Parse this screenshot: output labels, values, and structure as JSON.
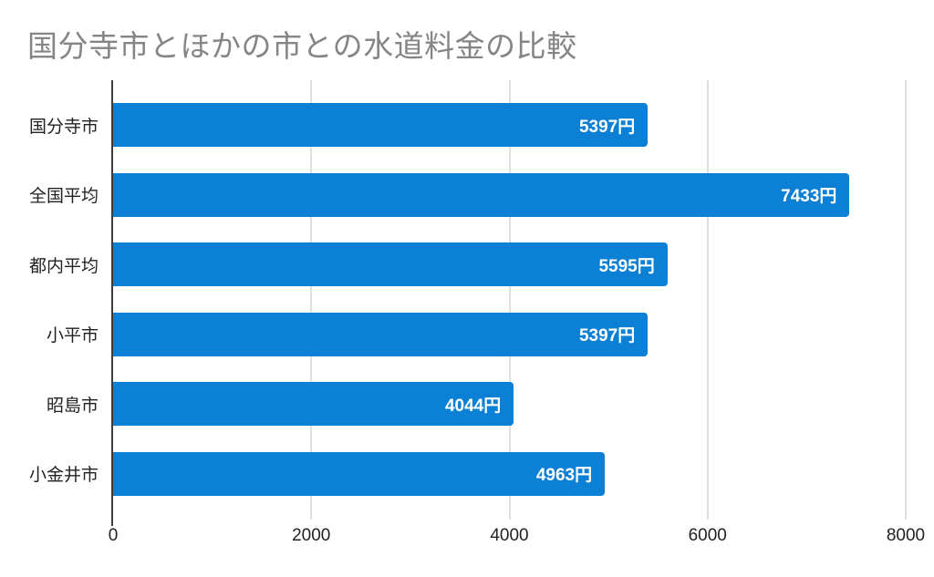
{
  "page": {
    "background": "#ffffff"
  },
  "chart_data": {
    "type": "bar",
    "orientation": "horizontal",
    "title": "国分寺市とほかの市との水道料金の比較",
    "categories": [
      "国分寺市",
      "全国平均",
      "都内平均",
      "小平市",
      "昭島市",
      "小金井市"
    ],
    "values": [
      5397,
      7433,
      5595,
      5397,
      4044,
      4963
    ],
    "value_labels": [
      "5397円",
      "7433円",
      "5595円",
      "5397円",
      "4044円",
      "4963円"
    ],
    "unit": "円",
    "xlabel": "",
    "ylabel": "",
    "xlim": [
      0,
      8000
    ],
    "x_ticks": [
      0,
      2000,
      4000,
      6000,
      8000
    ],
    "x_tick_labels": [
      "0",
      "2000",
      "4000",
      "6000",
      "8000"
    ],
    "grid": true,
    "legend": "none",
    "colors": {
      "bar": "#0b80d4",
      "title": "#858585",
      "grid": "#e0e0e0",
      "axis": "#3c3c3c",
      "tick_label": "#222222",
      "category_label": "#222222",
      "value_label": "#ffffff"
    }
  }
}
